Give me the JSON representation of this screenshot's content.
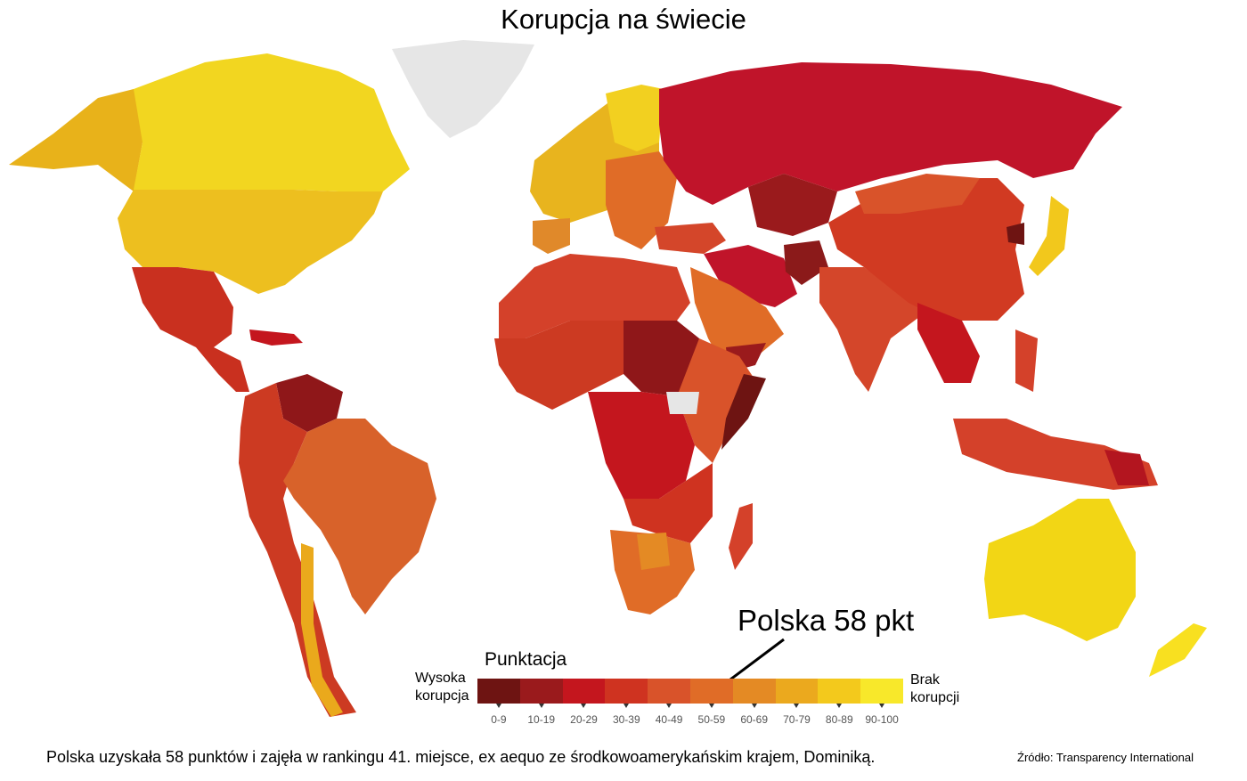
{
  "title": "Korupcja na świecie",
  "callout": "Polska 58 pkt",
  "legend": {
    "title": "Punktacja",
    "left_label_line1": "Wysoka",
    "left_label_line2": "korupcja",
    "right_label_line1": "Brak",
    "right_label_line2": "korupcji",
    "bins": [
      {
        "label": "0-9",
        "color": "#6e1412"
      },
      {
        "label": "10-19",
        "color": "#9a1a1c"
      },
      {
        "label": "20-29",
        "color": "#c4161e"
      },
      {
        "label": "30-39",
        "color": "#cf3320"
      },
      {
        "label": "40-49",
        "color": "#d9532a"
      },
      {
        "label": "50-59",
        "color": "#e06c27"
      },
      {
        "label": "60-69",
        "color": "#e48a24"
      },
      {
        "label": "70-79",
        "color": "#eba91e"
      },
      {
        "label": "80-89",
        "color": "#f3c91c"
      },
      {
        "label": "90-100",
        "color": "#f8e82a"
      }
    ]
  },
  "footer": "Polska uzyskała 58 punktów i zajęła w rankingu 41. miejsce, ex aequo ze środkowoamerykańskim krajem, Dominiką.",
  "source": "Źródło:  Transparency International",
  "map_colors": {
    "no_data": "#e6e6e6",
    "russia": "#c0142a",
    "canada": "#f2d620",
    "usa": "#edbf1f",
    "brazil": "#d8622a",
    "australia": "#f2d615"
  }
}
